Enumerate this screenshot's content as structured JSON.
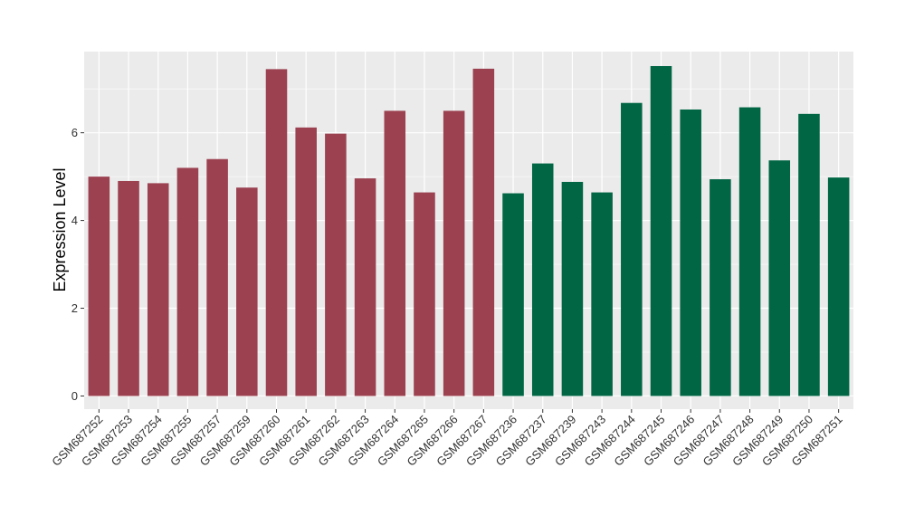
{
  "chart_data": {
    "type": "bar",
    "ylabel": "Expression Level",
    "xlabel": "",
    "ylim": [
      -0.3,
      7.85
    ],
    "yticks": [
      0,
      2,
      4,
      6
    ],
    "y_tick_labels": [
      "0",
      "2",
      "4",
      "6"
    ],
    "grid": true,
    "colors": {
      "group1": "#9b4150",
      "group2": "#006644",
      "panel": "#ebebeb",
      "grid": "#ffffff"
    },
    "categories": [
      "GSM687252",
      "GSM687253",
      "GSM687254",
      "GSM687255",
      "GSM687257",
      "GSM687259",
      "GSM687260",
      "GSM687261",
      "GSM687262",
      "GSM687263",
      "GSM687264",
      "GSM687265",
      "GSM687266",
      "GSM687267",
      "GSM687236",
      "GSM687237",
      "GSM687239",
      "GSM687243",
      "GSM687244",
      "GSM687245",
      "GSM687246",
      "GSM687247",
      "GSM687248",
      "GSM687249",
      "GSM687250",
      "GSM687251"
    ],
    "values": [
      5.0,
      4.9,
      4.85,
      5.2,
      5.4,
      4.75,
      7.45,
      6.12,
      5.98,
      4.96,
      6.5,
      4.64,
      6.5,
      7.46,
      4.62,
      5.3,
      4.88,
      4.64,
      6.68,
      7.52,
      6.53,
      4.94,
      6.58,
      5.37,
      6.43,
      4.98
    ],
    "groups": [
      "group1",
      "group1",
      "group1",
      "group1",
      "group1",
      "group1",
      "group1",
      "group1",
      "group1",
      "group1",
      "group1",
      "group1",
      "group1",
      "group1",
      "group2",
      "group2",
      "group2",
      "group2",
      "group2",
      "group2",
      "group2",
      "group2",
      "group2",
      "group2",
      "group2",
      "group2"
    ]
  }
}
